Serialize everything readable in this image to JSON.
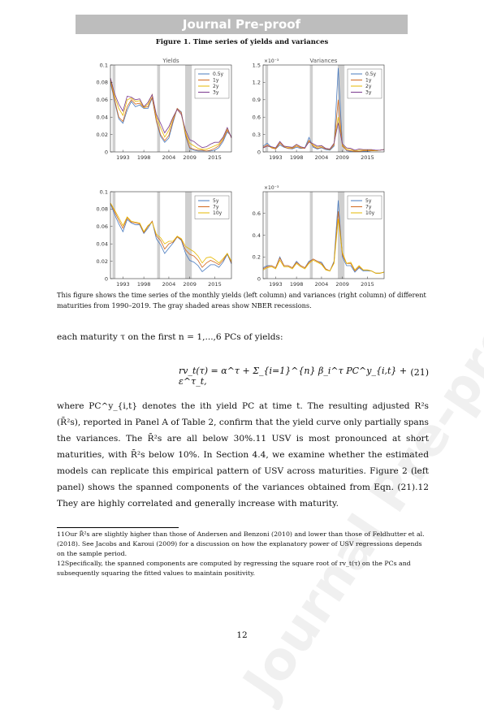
{
  "banner": "Journal Pre-proof",
  "figure_title": "Figure 1. Time series of yields and variances",
  "caption": "This figure shows the time series of the monthly yields (left column) and variances (right column) of different maturities from 1990–2019. The gray shaded areas show NBER recessions.",
  "para1": "each maturity τ on the first n = 1,...,6 PCs of yields:",
  "equation": {
    "formula": "rv_t(τ) = α^τ + Σ_{i=1}^{n} β_i^τ PC^y_{i,t} + ε^τ_t,",
    "number": "(21)"
  },
  "para2": "where PC^y_{i,t} denotes the ith yield PC at time t. The resulting adjusted R²s (R̄²s), reported in Panel A of Table 2, confirm that the yield curve only partially spans the variances. The R̄²s are all below 30%.11 USV is most pronounced at short maturities, with R̄²s below 10%. In Section 4.4, we examine whether the estimated models can replicate this empirical pattern of USV across maturities. Figure 2 (left panel) shows the spanned components of the variances obtained from Eqn. (21).12 They are highly correlated and generally increase with maturity.",
  "footnote11": "11Our R̄²s are slightly higher than those of Andersen and Benzoni (2010) and lower than those of Feldhutter et al. (2018). See Jacobs and Karoui (2009) for a discussion on how the explanatory power of USV regressions depends on the sample period.",
  "footnote12": "12Specifically, the spanned components are computed by regressing the square root of rv_t(τ) on the PCs and subsequently squaring the fitted values to maintain positivity.",
  "page_number": "12",
  "watermark": "Journal Pre-proof",
  "colors": {
    "s1": "#4a7bbf",
    "s2": "#d2691e",
    "s3": "#e6b800",
    "s4": "#7b3a8f",
    "recession": "#cfcfcf"
  },
  "chart_data": [
    {
      "type": "line",
      "title": "Yields",
      "exponent": "",
      "x_ticks": [
        "1993",
        "1998",
        "2004",
        "2009",
        "2015"
      ],
      "xlim": [
        1990,
        2019
      ],
      "ylim": [
        0,
        0.1
      ],
      "y_ticks": [
        "0",
        "0.02",
        "0.04",
        "0.06",
        "0.08",
        "0.1"
      ],
      "recessions": [
        [
          1990.5,
          1991.2
        ],
        [
          2001.2,
          2001.9
        ],
        [
          2007.9,
          2009.5
        ]
      ],
      "legend": [
        "0.5y",
        "1y",
        "2y",
        "3y"
      ],
      "x": [
        1990,
        1991,
        1992,
        1993,
        1994,
        1995,
        1996,
        1997,
        1998,
        1999,
        2000,
        2001,
        2002,
        2003,
        2004,
        2005,
        2006,
        2007,
        2008,
        2009,
        2010,
        2011,
        2012,
        2013,
        2014,
        2015,
        2016,
        2017,
        2018,
        2019
      ],
      "series": [
        {
          "name": "0.5y",
          "values": [
            0.08,
            0.058,
            0.038,
            0.033,
            0.048,
            0.058,
            0.052,
            0.054,
            0.05,
            0.05,
            0.062,
            0.035,
            0.018,
            0.011,
            0.016,
            0.034,
            0.05,
            0.046,
            0.018,
            0.004,
            0.002,
            0.001,
            0.001,
            0.001,
            0.001,
            0.002,
            0.005,
            0.012,
            0.023,
            0.018
          ]
        },
        {
          "name": "1y",
          "values": [
            0.082,
            0.06,
            0.04,
            0.035,
            0.052,
            0.06,
            0.055,
            0.056,
            0.051,
            0.052,
            0.063,
            0.036,
            0.02,
            0.013,
            0.019,
            0.036,
            0.05,
            0.045,
            0.02,
            0.005,
            0.003,
            0.002,
            0.002,
            0.001,
            0.002,
            0.004,
            0.007,
            0.014,
            0.025,
            0.017
          ]
        },
        {
          "name": "2y",
          "values": [
            0.084,
            0.064,
            0.05,
            0.042,
            0.06,
            0.062,
            0.058,
            0.059,
            0.051,
            0.055,
            0.066,
            0.04,
            0.028,
            0.017,
            0.025,
            0.039,
            0.049,
            0.043,
            0.022,
            0.01,
            0.007,
            0.004,
            0.003,
            0.003,
            0.005,
            0.007,
            0.009,
            0.016,
            0.027,
            0.016
          ]
        },
        {
          "name": "3y",
          "values": [
            0.085,
            0.067,
            0.055,
            0.047,
            0.064,
            0.063,
            0.06,
            0.061,
            0.052,
            0.057,
            0.066,
            0.043,
            0.033,
            0.022,
            0.029,
            0.04,
            0.049,
            0.043,
            0.025,
            0.014,
            0.012,
            0.008,
            0.005,
            0.006,
            0.009,
            0.011,
            0.011,
            0.017,
            0.028,
            0.016
          ]
        }
      ]
    },
    {
      "type": "line",
      "title": "Variances",
      "exponent": "×10⁻³",
      "x_ticks": [
        "1993",
        "1998",
        "2004",
        "2009",
        "2015"
      ],
      "xlim": [
        1990,
        2019
      ],
      "ylim": [
        0,
        1.5
      ],
      "y_ticks": [
        "0",
        "0.3",
        "0.6",
        "0.9",
        "1.2",
        "1.5"
      ],
      "recessions": [
        [
          1990.5,
          1991.2
        ],
        [
          2001.2,
          2001.9
        ],
        [
          2007.9,
          2009.5
        ]
      ],
      "legend": [
        "0.5y",
        "1y",
        "2y",
        "3y"
      ],
      "x": [
        1990,
        1991,
        1992,
        1993,
        1994,
        1995,
        1996,
        1997,
        1998,
        1999,
        2000,
        2001,
        2002,
        2003,
        2004,
        2005,
        2006,
        2007,
        2008,
        2009,
        2010,
        2011,
        2012,
        2013,
        2014,
        2015,
        2016,
        2017,
        2018,
        2019
      ],
      "series": [
        {
          "name": "0.5y",
          "values": [
            0.1,
            0.15,
            0.08,
            0.05,
            0.12,
            0.08,
            0.06,
            0.05,
            0.08,
            0.06,
            0.07,
            0.25,
            0.08,
            0.05,
            0.07,
            0.04,
            0.03,
            0.1,
            1.45,
            0.12,
            0.02,
            0.01,
            0.01,
            0.01,
            0.01,
            0.01,
            0.02,
            0.02,
            0.03,
            0.04
          ]
        },
        {
          "name": "1y",
          "values": [
            0.08,
            0.12,
            0.07,
            0.05,
            0.15,
            0.09,
            0.06,
            0.06,
            0.1,
            0.07,
            0.06,
            0.2,
            0.1,
            0.06,
            0.08,
            0.05,
            0.04,
            0.12,
            0.9,
            0.1,
            0.03,
            0.02,
            0.01,
            0.01,
            0.02,
            0.02,
            0.02,
            0.02,
            0.03,
            0.04
          ]
        },
        {
          "name": "2y",
          "values": [
            0.07,
            0.1,
            0.08,
            0.06,
            0.17,
            0.1,
            0.08,
            0.07,
            0.12,
            0.08,
            0.07,
            0.18,
            0.12,
            0.08,
            0.1,
            0.06,
            0.04,
            0.14,
            0.6,
            0.12,
            0.05,
            0.04,
            0.02,
            0.03,
            0.03,
            0.03,
            0.03,
            0.02,
            0.03,
            0.04
          ]
        },
        {
          "name": "3y",
          "values": [
            0.07,
            0.1,
            0.09,
            0.07,
            0.18,
            0.1,
            0.09,
            0.08,
            0.13,
            0.09,
            0.07,
            0.17,
            0.14,
            0.1,
            0.11,
            0.06,
            0.05,
            0.15,
            0.5,
            0.14,
            0.07,
            0.06,
            0.03,
            0.05,
            0.04,
            0.04,
            0.04,
            0.03,
            0.03,
            0.04
          ]
        }
      ]
    },
    {
      "type": "line",
      "title": "",
      "exponent": "",
      "x_ticks": [
        "1993",
        "1998",
        "2004",
        "2009",
        "2015"
      ],
      "xlim": [
        1990,
        2019
      ],
      "ylim": [
        0,
        0.1
      ],
      "y_ticks": [
        "0",
        "0.02",
        "0.04",
        "0.06",
        "0.08",
        "0.1"
      ],
      "recessions": [
        [
          1990.5,
          1991.2
        ],
        [
          2001.2,
          2001.9
        ],
        [
          2007.9,
          2009.5
        ]
      ],
      "legend": [
        "5y",
        "7y",
        "10y"
      ],
      "x": [
        1990,
        1991,
        1992,
        1993,
        1994,
        1995,
        1996,
        1997,
        1998,
        1999,
        2000,
        2001,
        2002,
        2003,
        2004,
        2005,
        2006,
        2007,
        2008,
        2009,
        2010,
        2011,
        2012,
        2013,
        2014,
        2015,
        2016,
        2017,
        2018,
        2019
      ],
      "series": [
        {
          "name": "5y",
          "values": [
            0.086,
            0.074,
            0.063,
            0.054,
            0.068,
            0.064,
            0.062,
            0.062,
            0.052,
            0.058,
            0.066,
            0.046,
            0.039,
            0.029,
            0.035,
            0.041,
            0.048,
            0.044,
            0.029,
            0.021,
            0.019,
            0.015,
            0.008,
            0.012,
            0.016,
            0.016,
            0.013,
            0.019,
            0.028,
            0.017
          ]
        },
        {
          "name": "7y",
          "values": [
            0.087,
            0.077,
            0.067,
            0.058,
            0.07,
            0.065,
            0.064,
            0.063,
            0.053,
            0.06,
            0.066,
            0.049,
            0.044,
            0.034,
            0.04,
            0.042,
            0.048,
            0.045,
            0.033,
            0.028,
            0.026,
            0.021,
            0.013,
            0.018,
            0.021,
            0.019,
            0.016,
            0.021,
            0.029,
            0.018
          ]
        },
        {
          "name": "10y",
          "values": [
            0.087,
            0.079,
            0.07,
            0.061,
            0.071,
            0.066,
            0.065,
            0.064,
            0.054,
            0.061,
            0.065,
            0.051,
            0.047,
            0.04,
            0.043,
            0.043,
            0.049,
            0.046,
            0.037,
            0.034,
            0.031,
            0.026,
            0.018,
            0.024,
            0.025,
            0.022,
            0.018,
            0.023,
            0.029,
            0.02
          ]
        }
      ]
    },
    {
      "type": "line",
      "title": "",
      "exponent": "×10⁻³",
      "x_ticks": [
        "1993",
        "1998",
        "2004",
        "2009",
        "2015"
      ],
      "xlim": [
        1990,
        2019
      ],
      "ylim": [
        0,
        0.8
      ],
      "y_ticks": [
        "0",
        "0.2",
        "0.4",
        "0.6"
      ],
      "recessions": [
        [
          1990.5,
          1991.2
        ],
        [
          2001.2,
          2001.9
        ],
        [
          2007.9,
          2009.5
        ]
      ],
      "legend": [
        "5y",
        "7y",
        "10y"
      ],
      "x": [
        1990,
        1991,
        1992,
        1993,
        1994,
        1995,
        1996,
        1997,
        1998,
        1999,
        2000,
        2001,
        2002,
        2003,
        2004,
        2005,
        2006,
        2007,
        2008,
        2009,
        2010,
        2011,
        2012,
        2013,
        2014,
        2015,
        2016,
        2017,
        2018,
        2019
      ],
      "series": [
        {
          "name": "5y",
          "values": [
            0.1,
            0.12,
            0.12,
            0.1,
            0.2,
            0.12,
            0.12,
            0.1,
            0.16,
            0.12,
            0.1,
            0.16,
            0.18,
            0.16,
            0.15,
            0.09,
            0.07,
            0.16,
            0.72,
            0.2,
            0.12,
            0.12,
            0.06,
            0.1,
            0.07,
            0.07,
            0.07,
            0.05,
            0.05,
            0.06
          ]
        },
        {
          "name": "7y",
          "values": [
            0.09,
            0.11,
            0.12,
            0.1,
            0.19,
            0.12,
            0.12,
            0.1,
            0.15,
            0.12,
            0.1,
            0.15,
            0.18,
            0.16,
            0.14,
            0.09,
            0.07,
            0.15,
            0.62,
            0.22,
            0.14,
            0.14,
            0.07,
            0.11,
            0.08,
            0.08,
            0.07,
            0.05,
            0.05,
            0.06
          ]
        },
        {
          "name": "10y",
          "values": [
            0.08,
            0.1,
            0.11,
            0.09,
            0.17,
            0.11,
            0.11,
            0.09,
            0.14,
            0.11,
            0.09,
            0.14,
            0.17,
            0.15,
            0.13,
            0.08,
            0.07,
            0.14,
            0.55,
            0.24,
            0.14,
            0.15,
            0.08,
            0.12,
            0.08,
            0.08,
            0.07,
            0.05,
            0.05,
            0.06
          ]
        }
      ]
    }
  ]
}
